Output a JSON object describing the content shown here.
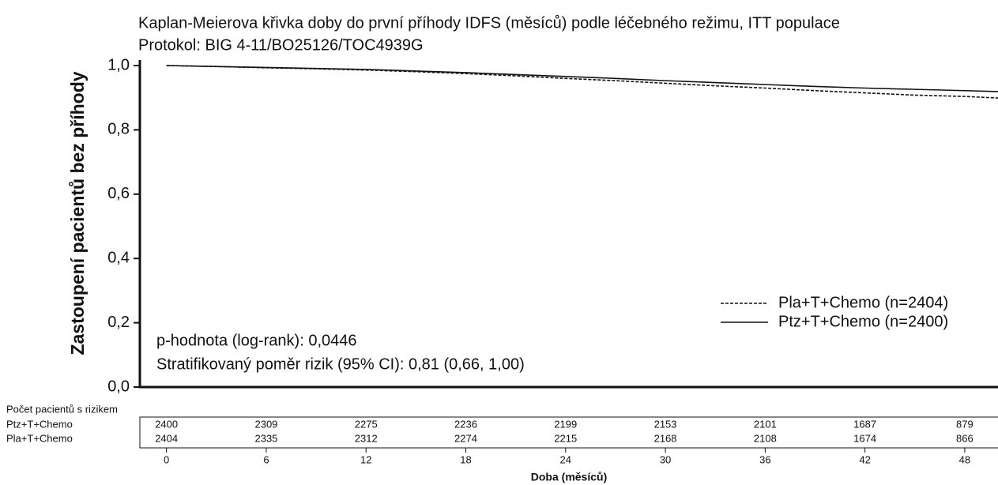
{
  "chart_data": {
    "type": "line",
    "title": "Kaplan-Meierova křivka doby do první příhody IDFS (měsíců) podle léčebného režimu, ITT populace",
    "subtitle": "Protokol: BIG 4-11/BO25126/TOC4939G",
    "y_label": "Zastoupení pacientů bez příhody",
    "x_label": "Doba (měsíců)",
    "xlim": [
      -1.6,
      50
    ],
    "ylim": [
      0,
      1
    ],
    "yticks": [
      {
        "value": 0,
        "label": "0,0"
      },
      {
        "value": 0.2,
        "label": "0,2"
      },
      {
        "value": 0.4,
        "label": "0,4"
      },
      {
        "value": 0.6,
        "label": "0,6"
      },
      {
        "value": 0.8,
        "label": "0,8"
      },
      {
        "value": 1,
        "label": "1,0"
      }
    ],
    "xticks": [
      0,
      6,
      12,
      18,
      24,
      30,
      36,
      42,
      48
    ],
    "x": [
      0,
      3,
      6,
      9,
      12,
      15,
      18,
      21,
      24,
      27,
      30,
      33,
      36,
      39,
      42,
      45,
      48,
      50
    ],
    "series": [
      {
        "name": "Pla+T+Chemo (n=2404)",
        "color": "#111111",
        "linestyle": "dashed",
        "values": [
          1.0,
          0.997,
          0.993,
          0.99,
          0.986,
          0.981,
          0.975,
          0.968,
          0.96,
          0.953,
          0.945,
          0.937,
          0.93,
          0.922,
          0.915,
          0.908,
          0.904,
          0.899
        ]
      },
      {
        "name": "Ptz+T+Chemo (n=2400)",
        "color": "#111111",
        "linestyle": "solid",
        "values": [
          1.0,
          0.997,
          0.994,
          0.991,
          0.988,
          0.983,
          0.978,
          0.972,
          0.966,
          0.96,
          0.953,
          0.947,
          0.941,
          0.935,
          0.93,
          0.926,
          0.922,
          0.919
        ]
      }
    ],
    "annotations": [
      "p-hodnota (log-rank): 0,0446",
      "Stratifikovaný poměr rizik (95% CI): 0,81 (0,66, 1,00)"
    ],
    "risk_table": {
      "title": "Počet pacientů s rizikem",
      "rows": [
        {
          "name": "Ptz+T+Chemo",
          "values": [
            2400,
            2309,
            2275,
            2236,
            2199,
            2153,
            2101,
            1687,
            879
          ]
        },
        {
          "name": "Pla+T+Chemo",
          "values": [
            2404,
            2335,
            2312,
            2274,
            2215,
            2168,
            2108,
            1674,
            866
          ]
        }
      ]
    }
  }
}
